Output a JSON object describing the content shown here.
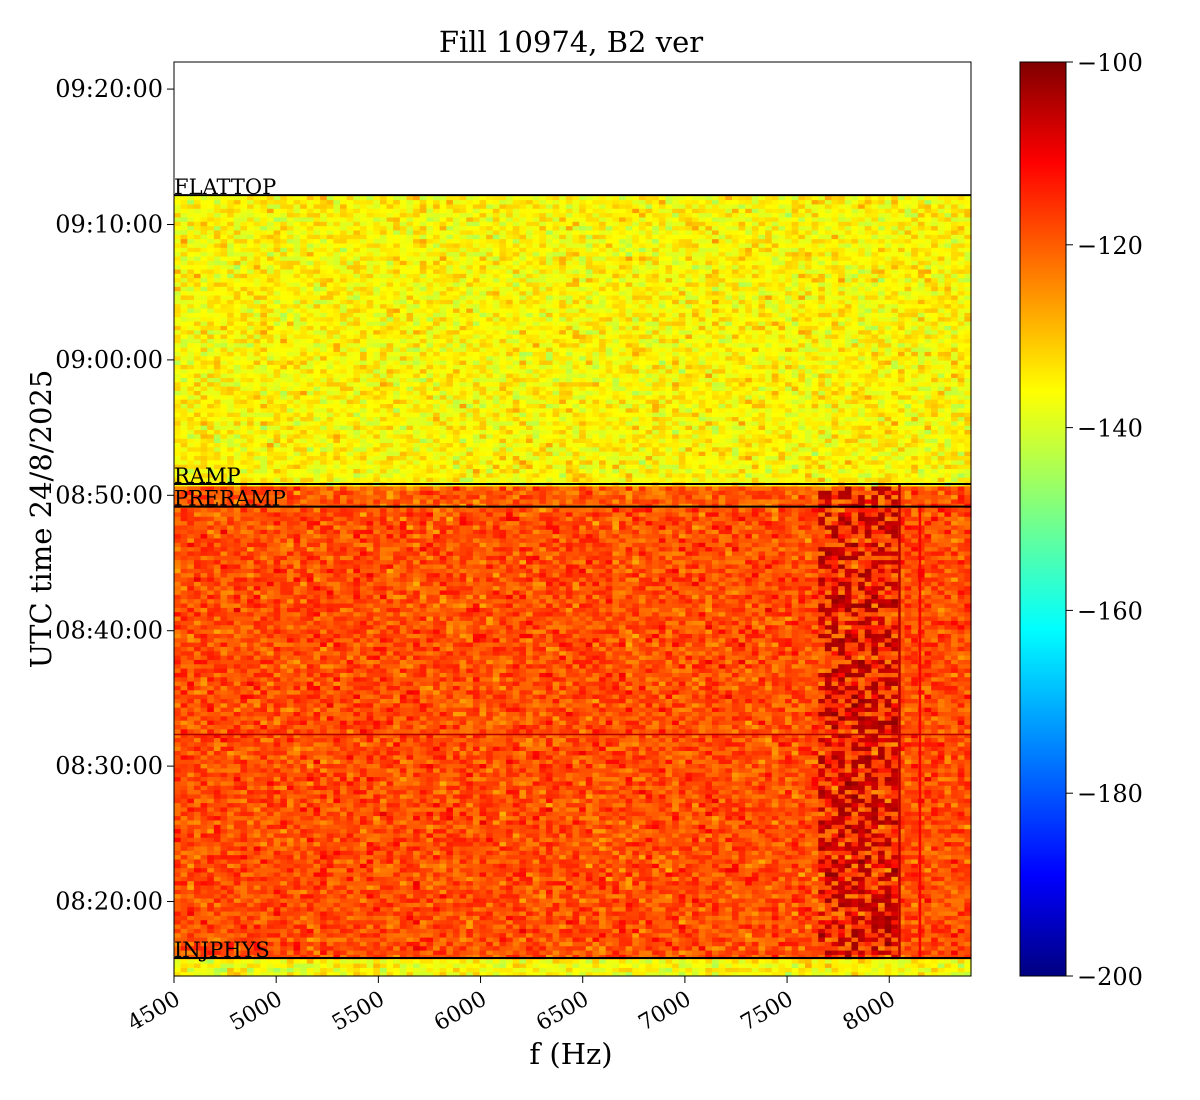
{
  "chart_data": {
    "type": "heatmap",
    "title": "Fill 10974, B2 ver",
    "xlabel": "f (Hz)",
    "ylabel": "UTC time 24/8/2025",
    "xlim": [
      4500,
      8400
    ],
    "ylim": [
      "08:14:30",
      "09:22:00"
    ],
    "x_ticks": [
      "4500",
      "5000",
      "5500",
      "6000",
      "6500",
      "7000",
      "7500",
      "8000"
    ],
    "y_ticks": [
      "08:20:00",
      "08:30:00",
      "08:40:00",
      "08:50:00",
      "09:00:00",
      "09:10:00",
      "09:20:00"
    ],
    "colorbar": {
      "colormap": "jet",
      "range": [
        -200,
        -100
      ],
      "ticks": [
        "−100",
        "−120",
        "−140",
        "−160",
        "−180",
        "−200"
      ]
    },
    "data_extent": [
      "08:14:30",
      "09:12:10"
    ],
    "regions": [
      {
        "from": "08:14:30",
        "to": "08:15:50",
        "level_db": -138
      },
      {
        "from": "08:15:50",
        "to": "08:49:10",
        "level_db": -120
      },
      {
        "from": "08:49:10",
        "to": "08:50:50",
        "level_db": -121
      },
      {
        "from": "08:50:50",
        "to": "09:12:10",
        "level_db": -137
      }
    ],
    "features": [
      {
        "kind": "hot-cluster",
        "f_from": 7650,
        "f_to": 8050,
        "t_from": "08:15:50",
        "t_to": "08:50:50",
        "level_db": -106
      },
      {
        "kind": "vertical-line",
        "f": 8050,
        "t_from": "08:15:50",
        "t_to": "08:50:50",
        "level_db": -106
      },
      {
        "kind": "vertical-line",
        "f": 8150,
        "t_from": "08:15:50",
        "t_to": "08:49:10",
        "level_db": -112
      },
      {
        "kind": "horizontal-line",
        "t": "08:32:20",
        "level_db": -105
      }
    ],
    "event_markers": [
      {
        "label": "FLATTOP",
        "time": "09:12:10"
      },
      {
        "label": "RAMP",
        "time": "08:50:50"
      },
      {
        "label": "PRERAMP",
        "time": "08:49:10"
      },
      {
        "label": "INJPHYS",
        "time": "08:15:50"
      }
    ]
  }
}
